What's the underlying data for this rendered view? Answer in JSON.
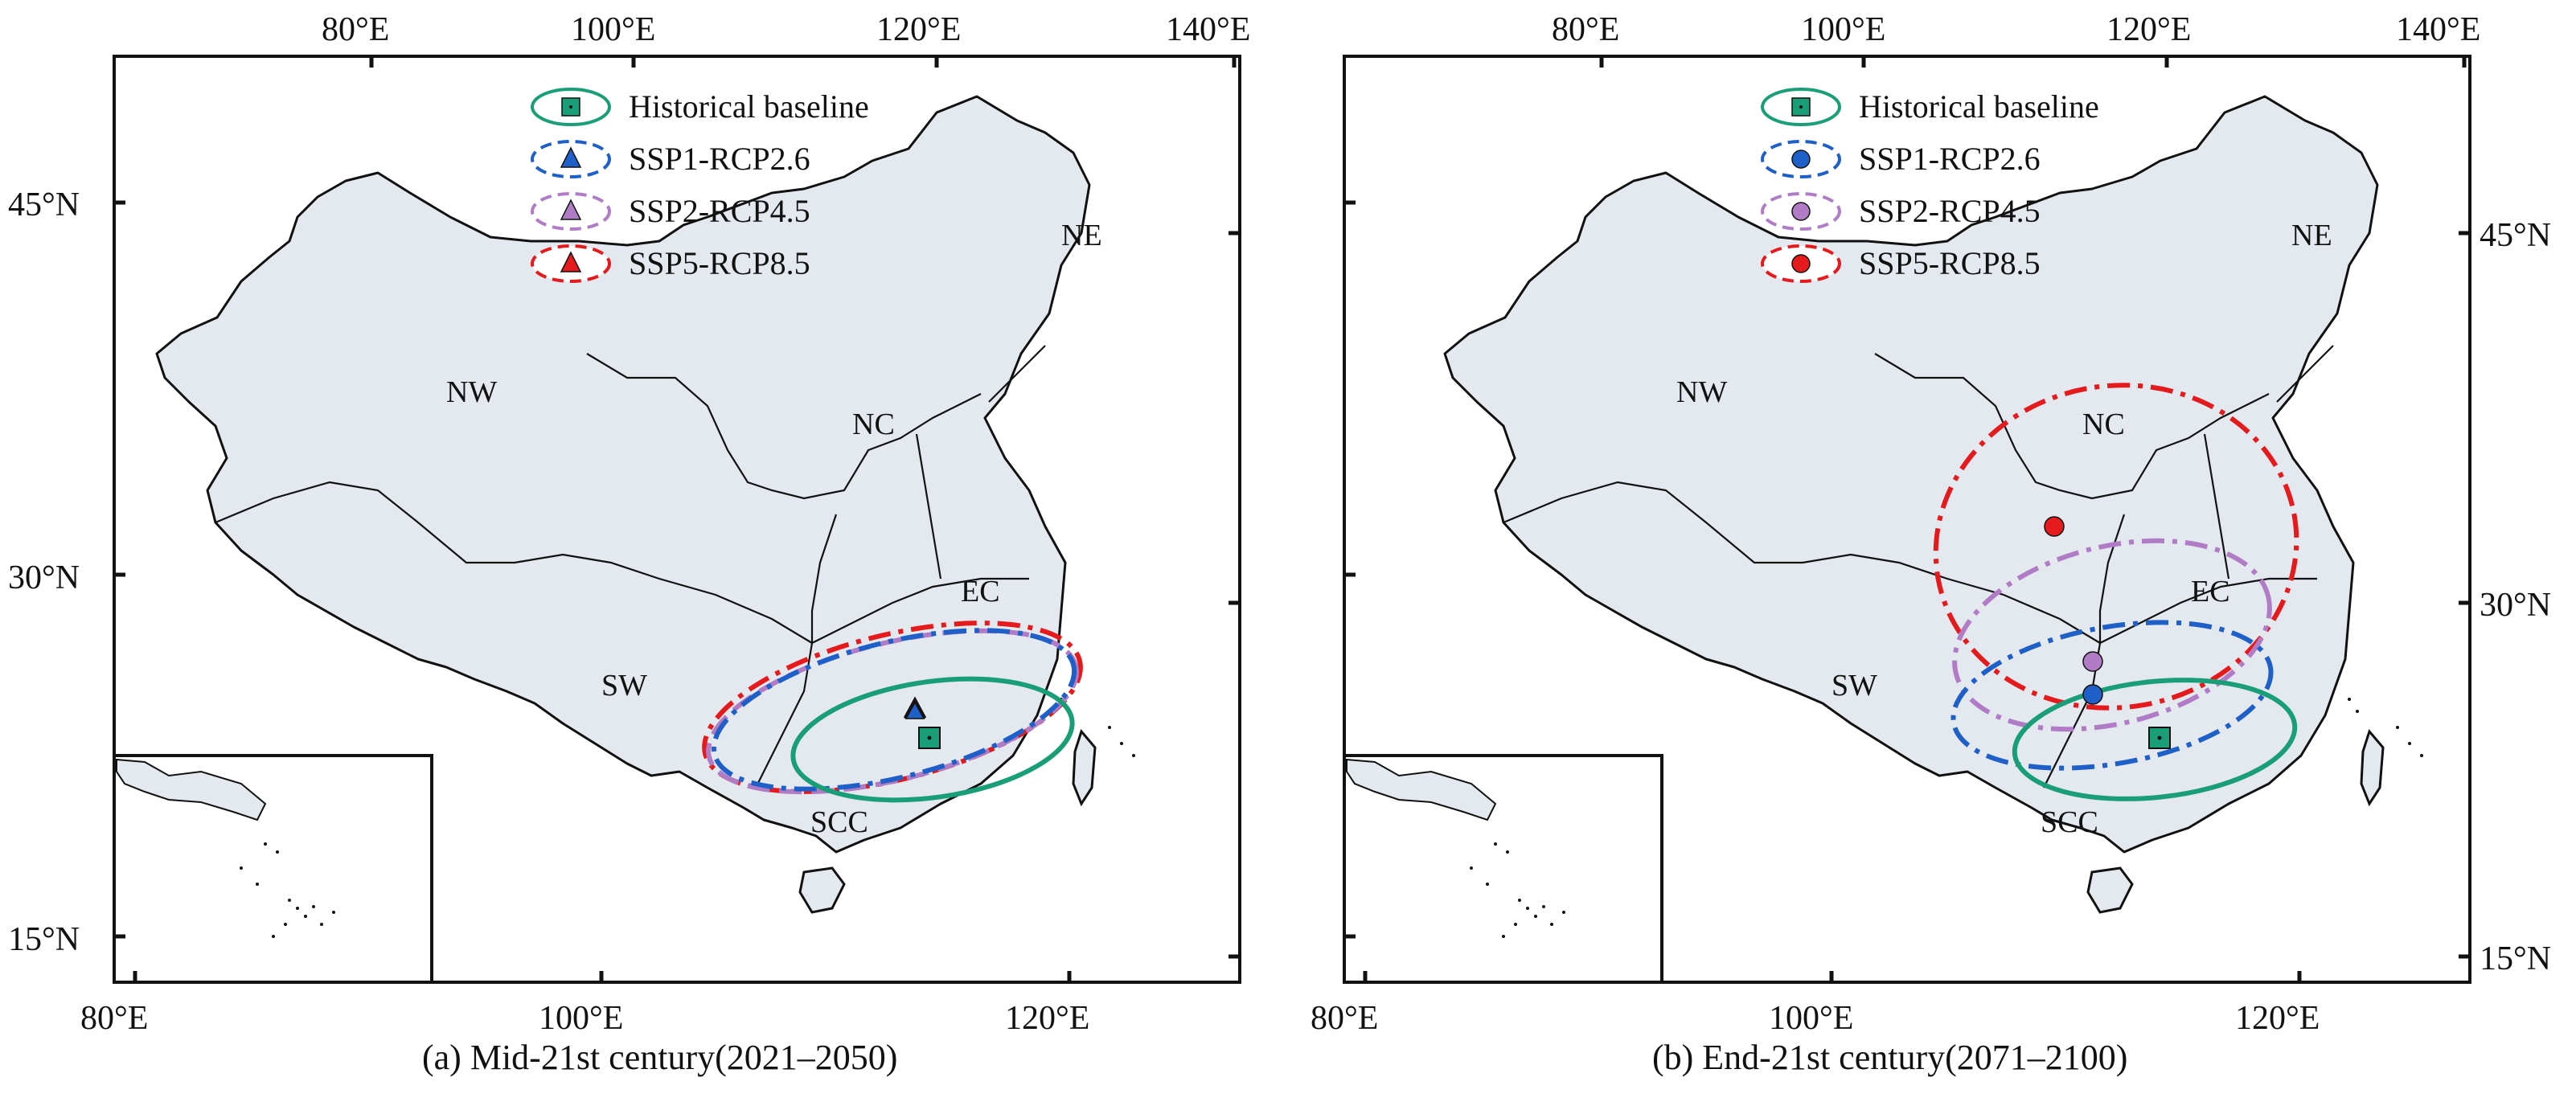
{
  "panels": [
    {
      "id": "a",
      "caption": "(a)  Mid-21st century(2021–2050)",
      "top_labels": [
        "80°E",
        "100°E",
        "120°E",
        "140°E"
      ],
      "bottom_labels": [
        "80°E",
        "100°E",
        "120°E"
      ],
      "lat_labels": [
        "45°N",
        "30°N",
        "15°N"
      ],
      "lat_labels_side": "left",
      "regions": [
        "NW",
        "NC",
        "NE",
        "SW",
        "EC",
        "SCC"
      ],
      "legend": [
        {
          "label": "Historical baseline",
          "color": "#1a9e77",
          "marker": "square",
          "line": "solid"
        },
        {
          "label": "SSP1-RCP2.6",
          "color": "#1f5fc8",
          "marker": "triangle",
          "line": "dashed"
        },
        {
          "label": "SSP2-RCP4.5",
          "color": "#b07cc6",
          "marker": "triangle",
          "line": "dashed"
        },
        {
          "label": "SSP5-RCP8.5",
          "color": "#e41a1c",
          "marker": "triangle",
          "line": "dashed"
        }
      ],
      "centroids": [
        {
          "scenario": "Historical baseline",
          "lon": 114.0,
          "lat": 23.8
        },
        {
          "scenario": "SSP1-RCP2.6",
          "lon": 113.5,
          "lat": 24.7
        },
        {
          "scenario": "SSP2-RCP4.5",
          "lon": 113.4,
          "lat": 24.9
        },
        {
          "scenario": "SSP5-RCP8.5",
          "lon": 113.4,
          "lat": 25.0
        }
      ]
    },
    {
      "id": "b",
      "caption": "(b)  End-21st century(2071–2100)",
      "top_labels": [
        "80°E",
        "100°E",
        "120°E",
        "140°E"
      ],
      "bottom_labels": [
        "80°E",
        "100°E",
        "120°E"
      ],
      "lat_labels": [
        "45°N",
        "30°N",
        "15°N"
      ],
      "lat_labels_side": "right",
      "regions": [
        "NW",
        "NC",
        "NE",
        "SW",
        "EC",
        "SCC"
      ],
      "legend": [
        {
          "label": "Historical baseline",
          "color": "#1a9e77",
          "marker": "square",
          "line": "solid"
        },
        {
          "label": "SSP1-RCP2.6",
          "color": "#1f5fc8",
          "marker": "circle",
          "line": "dashed"
        },
        {
          "label": "SSP2-RCP4.5",
          "color": "#b07cc6",
          "marker": "circle",
          "line": "dashed"
        },
        {
          "label": "SSP5-RCP8.5",
          "color": "#e41a1c",
          "marker": "circle",
          "line": "dashed"
        }
      ],
      "centroids": [
        {
          "scenario": "Historical baseline",
          "lon": 114.0,
          "lat": 23.8
        },
        {
          "scenario": "SSP1-RCP2.6",
          "lon": 113.4,
          "lat": 25.6
        },
        {
          "scenario": "SSP2-RCP4.5",
          "lon": 113.4,
          "lat": 27.0
        },
        {
          "scenario": "SSP5-RCP8.5",
          "lon": 111.4,
          "lat": 33.0
        }
      ]
    }
  ]
}
